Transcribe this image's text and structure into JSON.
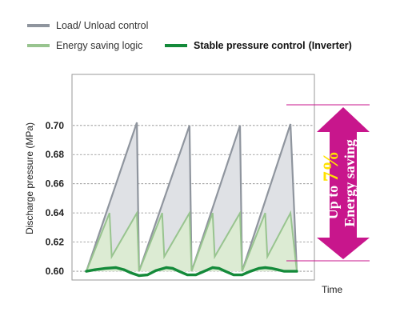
{
  "legend": [
    {
      "label": "Load/ Unload control",
      "color": "#8f959e",
      "bold": false
    },
    {
      "label": "Energy saving logic",
      "color": "#98c48f",
      "bold": false
    },
    {
      "label": "Stable pressure control",
      "suffix": "(Inverter)",
      "color": "#148a3a",
      "bold": true
    }
  ],
  "callout": {
    "prefix": "Up to ",
    "highlight": "7%",
    "line2": "Energy saving",
    "color": "#c8168c",
    "highlight_color": "#ffe100"
  },
  "chart_data": {
    "type": "line",
    "xlabel": "Time",
    "ylabel": "Discharge pressure (MPa)",
    "ylim": [
      0.594,
      0.735
    ],
    "xlim": [
      0,
      100
    ],
    "yticks": [
      "0.60",
      "0.62",
      "0.64",
      "0.66",
      "0.68",
      "0.70"
    ],
    "grid": "horizontal dashed",
    "series": [
      {
        "name": "Load/ Unload control",
        "color": "#8f959e",
        "fill": "#dfe1e5",
        "x": [
          0,
          24,
          25,
          49,
          50,
          73,
          74,
          97,
          100
        ],
        "y": [
          0.6,
          0.702,
          0.6,
          0.7,
          0.6,
          0.7,
          0.6,
          0.701,
          0.6
        ]
      },
      {
        "name": "Energy saving logic",
        "color": "#98c48f",
        "fill": "#dcebd3",
        "x": [
          0,
          11,
          12,
          24,
          25,
          36,
          37,
          49,
          50,
          60,
          61,
          73,
          74,
          85,
          86,
          97,
          100
        ],
        "y": [
          0.6,
          0.64,
          0.61,
          0.64,
          0.6,
          0.64,
          0.61,
          0.64,
          0.6,
          0.64,
          0.61,
          0.64,
          0.6,
          0.64,
          0.61,
          0.64,
          0.6
        ]
      },
      {
        "name": "Stable pressure control (Inverter)",
        "color": "#148a3a",
        "x": [
          0,
          4,
          9,
          14,
          18,
          21,
          25,
          29,
          33,
          38,
          41,
          44,
          48,
          52,
          56,
          60,
          63,
          66,
          70,
          74,
          78,
          82,
          85,
          88,
          91,
          94,
          97,
          100
        ],
        "y": [
          0.6,
          0.601,
          0.602,
          0.6025,
          0.601,
          0.599,
          0.597,
          0.5975,
          0.6005,
          0.6025,
          0.602,
          0.6,
          0.5975,
          0.5975,
          0.6,
          0.6025,
          0.602,
          0.6,
          0.5975,
          0.5975,
          0.6,
          0.602,
          0.6025,
          0.602,
          0.601,
          0.6,
          0.6,
          0.6
        ]
      }
    ]
  }
}
